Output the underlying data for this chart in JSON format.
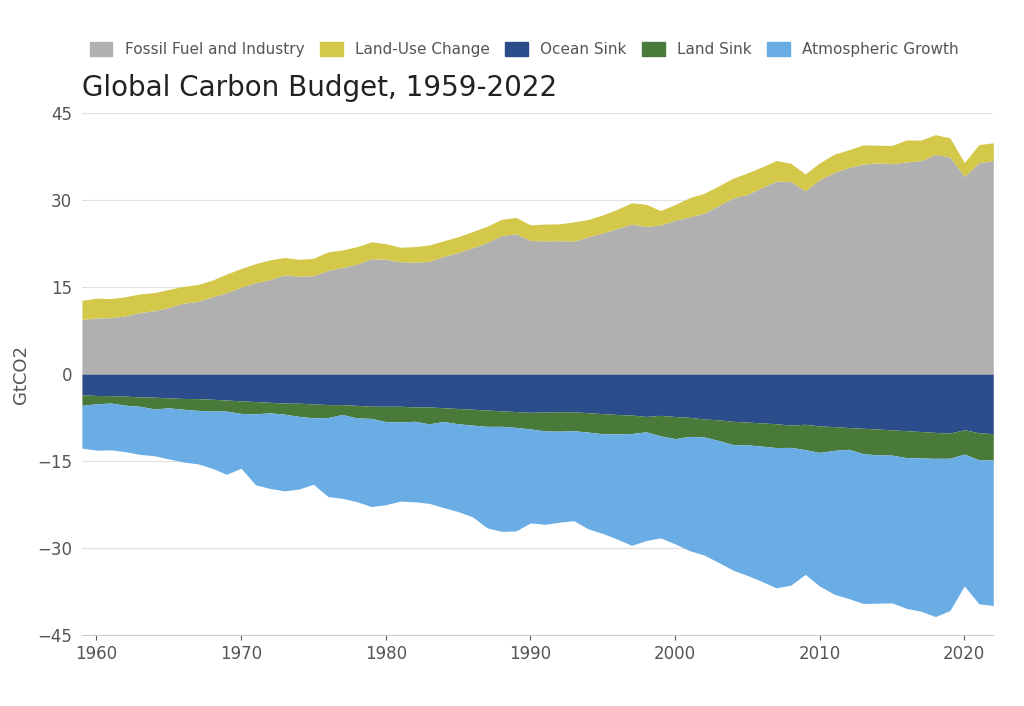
{
  "title": "Global Carbon Budget, 1959-2022",
  "ylabel": "GtCO2",
  "years": [
    1959,
    1960,
    1961,
    1962,
    1963,
    1964,
    1965,
    1966,
    1967,
    1968,
    1969,
    1970,
    1971,
    1972,
    1973,
    1974,
    1975,
    1976,
    1977,
    1978,
    1979,
    1980,
    1981,
    1982,
    1983,
    1984,
    1985,
    1986,
    1987,
    1988,
    1989,
    1990,
    1991,
    1992,
    1993,
    1994,
    1995,
    1996,
    1997,
    1998,
    1999,
    2000,
    2001,
    2002,
    2003,
    2004,
    2005,
    2006,
    2007,
    2008,
    2009,
    2010,
    2011,
    2012,
    2013,
    2014,
    2015,
    2016,
    2017,
    2018,
    2019,
    2020,
    2021,
    2022
  ],
  "fossil_fuel": [
    9.43,
    9.69,
    9.73,
    10.05,
    10.62,
    10.95,
    11.49,
    12.23,
    12.54,
    13.3,
    14.05,
    14.99,
    15.76,
    16.29,
    17.1,
    16.89,
    16.96,
    17.87,
    18.39,
    18.96,
    19.9,
    19.79,
    19.37,
    19.28,
    19.45,
    20.29,
    20.97,
    21.77,
    22.67,
    23.88,
    24.2,
    23.03,
    22.96,
    23.0,
    22.94,
    23.65,
    24.34,
    25.1,
    25.83,
    25.46,
    25.7,
    26.52,
    27.1,
    27.75,
    29.02,
    30.35,
    30.97,
    32.15,
    33.26,
    33.19,
    31.59,
    33.52,
    34.75,
    35.6,
    36.2,
    36.4,
    36.25,
    36.57,
    36.78,
    37.86,
    37.42,
    34.07,
    36.4,
    36.81
  ],
  "land_use": [
    3.3,
    3.4,
    3.3,
    3.3,
    3.2,
    3.1,
    3.1,
    2.9,
    2.9,
    2.9,
    3.2,
    3.2,
    3.3,
    3.4,
    3.0,
    2.9,
    3.0,
    3.2,
    3.0,
    3.0,
    2.9,
    2.7,
    2.5,
    2.7,
    2.8,
    2.7,
    2.7,
    2.8,
    2.8,
    2.8,
    2.8,
    2.7,
    2.9,
    2.9,
    3.3,
    3.0,
    3.1,
    3.3,
    3.7,
    3.8,
    2.5,
    2.7,
    3.3,
    3.4,
    3.4,
    3.4,
    3.7,
    3.55,
    3.55,
    3.15,
    2.9,
    2.9,
    3.15,
    3.05,
    3.3,
    3.05,
    3.15,
    3.78,
    3.55,
    3.4,
    3.3,
    2.4,
    3.15,
    3.05
  ],
  "ocean_sink": [
    -3.54,
    -3.67,
    -3.7,
    -3.78,
    -3.92,
    -3.96,
    -4.07,
    -4.18,
    -4.21,
    -4.32,
    -4.45,
    -4.6,
    -4.71,
    -4.84,
    -4.98,
    -4.99,
    -5.12,
    -5.24,
    -5.24,
    -5.37,
    -5.52,
    -5.53,
    -5.52,
    -5.65,
    -5.64,
    -5.78,
    -5.91,
    -6.04,
    -6.17,
    -6.31,
    -6.44,
    -6.57,
    -6.52,
    -6.47,
    -6.49,
    -6.63,
    -6.8,
    -6.94,
    -7.04,
    -7.28,
    -7.09,
    -7.29,
    -7.44,
    -7.72,
    -7.86,
    -8.12,
    -8.26,
    -8.39,
    -8.54,
    -8.77,
    -8.63,
    -8.92,
    -9.03,
    -9.19,
    -9.32,
    -9.44,
    -9.59,
    -9.73,
    -9.88,
    -10.03,
    -10.14,
    -9.58,
    -10.09,
    -10.24
  ],
  "land_sink": [
    -1.84,
    -1.43,
    -1.27,
    -1.56,
    -1.61,
    -2.02,
    -1.73,
    -1.86,
    -2.02,
    -2.01,
    -1.92,
    -2.16,
    -2.12,
    -1.82,
    -1.91,
    -2.28,
    -2.4,
    -2.23,
    -1.7,
    -2.17,
    -2.1,
    -2.64,
    -2.73,
    -2.46,
    -2.92,
    -2.37,
    -2.63,
    -2.73,
    -2.82,
    -2.67,
    -2.73,
    -2.86,
    -3.25,
    -3.35,
    -3.25,
    -3.35,
    -3.45,
    -3.36,
    -3.18,
    -2.65,
    -3.55,
    -3.82,
    -3.27,
    -3.1,
    -3.55,
    -4.01,
    -3.92,
    -4.0,
    -4.1,
    -3.84,
    -4.37,
    -4.56,
    -4.1,
    -3.74,
    -4.37,
    -4.46,
    -4.35,
    -4.65,
    -4.55,
    -4.47,
    -4.34,
    -4.19,
    -4.65,
    -4.54
  ],
  "atm_growth": [
    -7.35,
    -7.99,
    -8.06,
    -8.01,
    -8.29,
    -8.07,
    -8.79,
    -9.09,
    -9.21,
    -9.87,
    -10.88,
    -9.43,
    -12.23,
    -13.03,
    -13.21,
    -12.52,
    -11.44,
    -13.6,
    -14.45,
    -14.42,
    -15.18,
    -14.32,
    -13.62,
    -13.87,
    -13.69,
    -14.84,
    -15.13,
    -15.8,
    -17.48,
    -18.1,
    -17.83,
    -16.2,
    -16.09,
    -15.68,
    -15.5,
    -16.67,
    -17.19,
    -18.1,
    -19.26,
    -18.73,
    -17.56,
    -18.11,
    -19.69,
    -20.33,
    -21.01,
    -21.62,
    -22.49,
    -23.31,
    -24.17,
    -23.73,
    -21.49,
    -23.04,
    -24.77,
    -25.72,
    -25.81,
    -25.55,
    -25.46,
    -25.97,
    -26.4,
    -27.26,
    -26.24,
    -22.7,
    -24.81,
    -25.08
  ],
  "fossil_color": "#b0b0b0",
  "land_use_color": "#d4c84a",
  "ocean_sink_color": "#2b4d8c",
  "land_sink_color": "#4a7a3a",
  "atm_growth_color": "#6aade4",
  "background_color": "#ffffff",
  "grid_color": "#e0e0e0",
  "ylim": [
    -45,
    45
  ],
  "yticks": [
    -45,
    -30,
    -15,
    0,
    15,
    30,
    45
  ],
  "xticks": [
    1960,
    1970,
    1980,
    1990,
    2000,
    2010,
    2020
  ],
  "title_fontsize": 20,
  "label_fontsize": 13,
  "tick_fontsize": 12,
  "legend_fontsize": 11
}
